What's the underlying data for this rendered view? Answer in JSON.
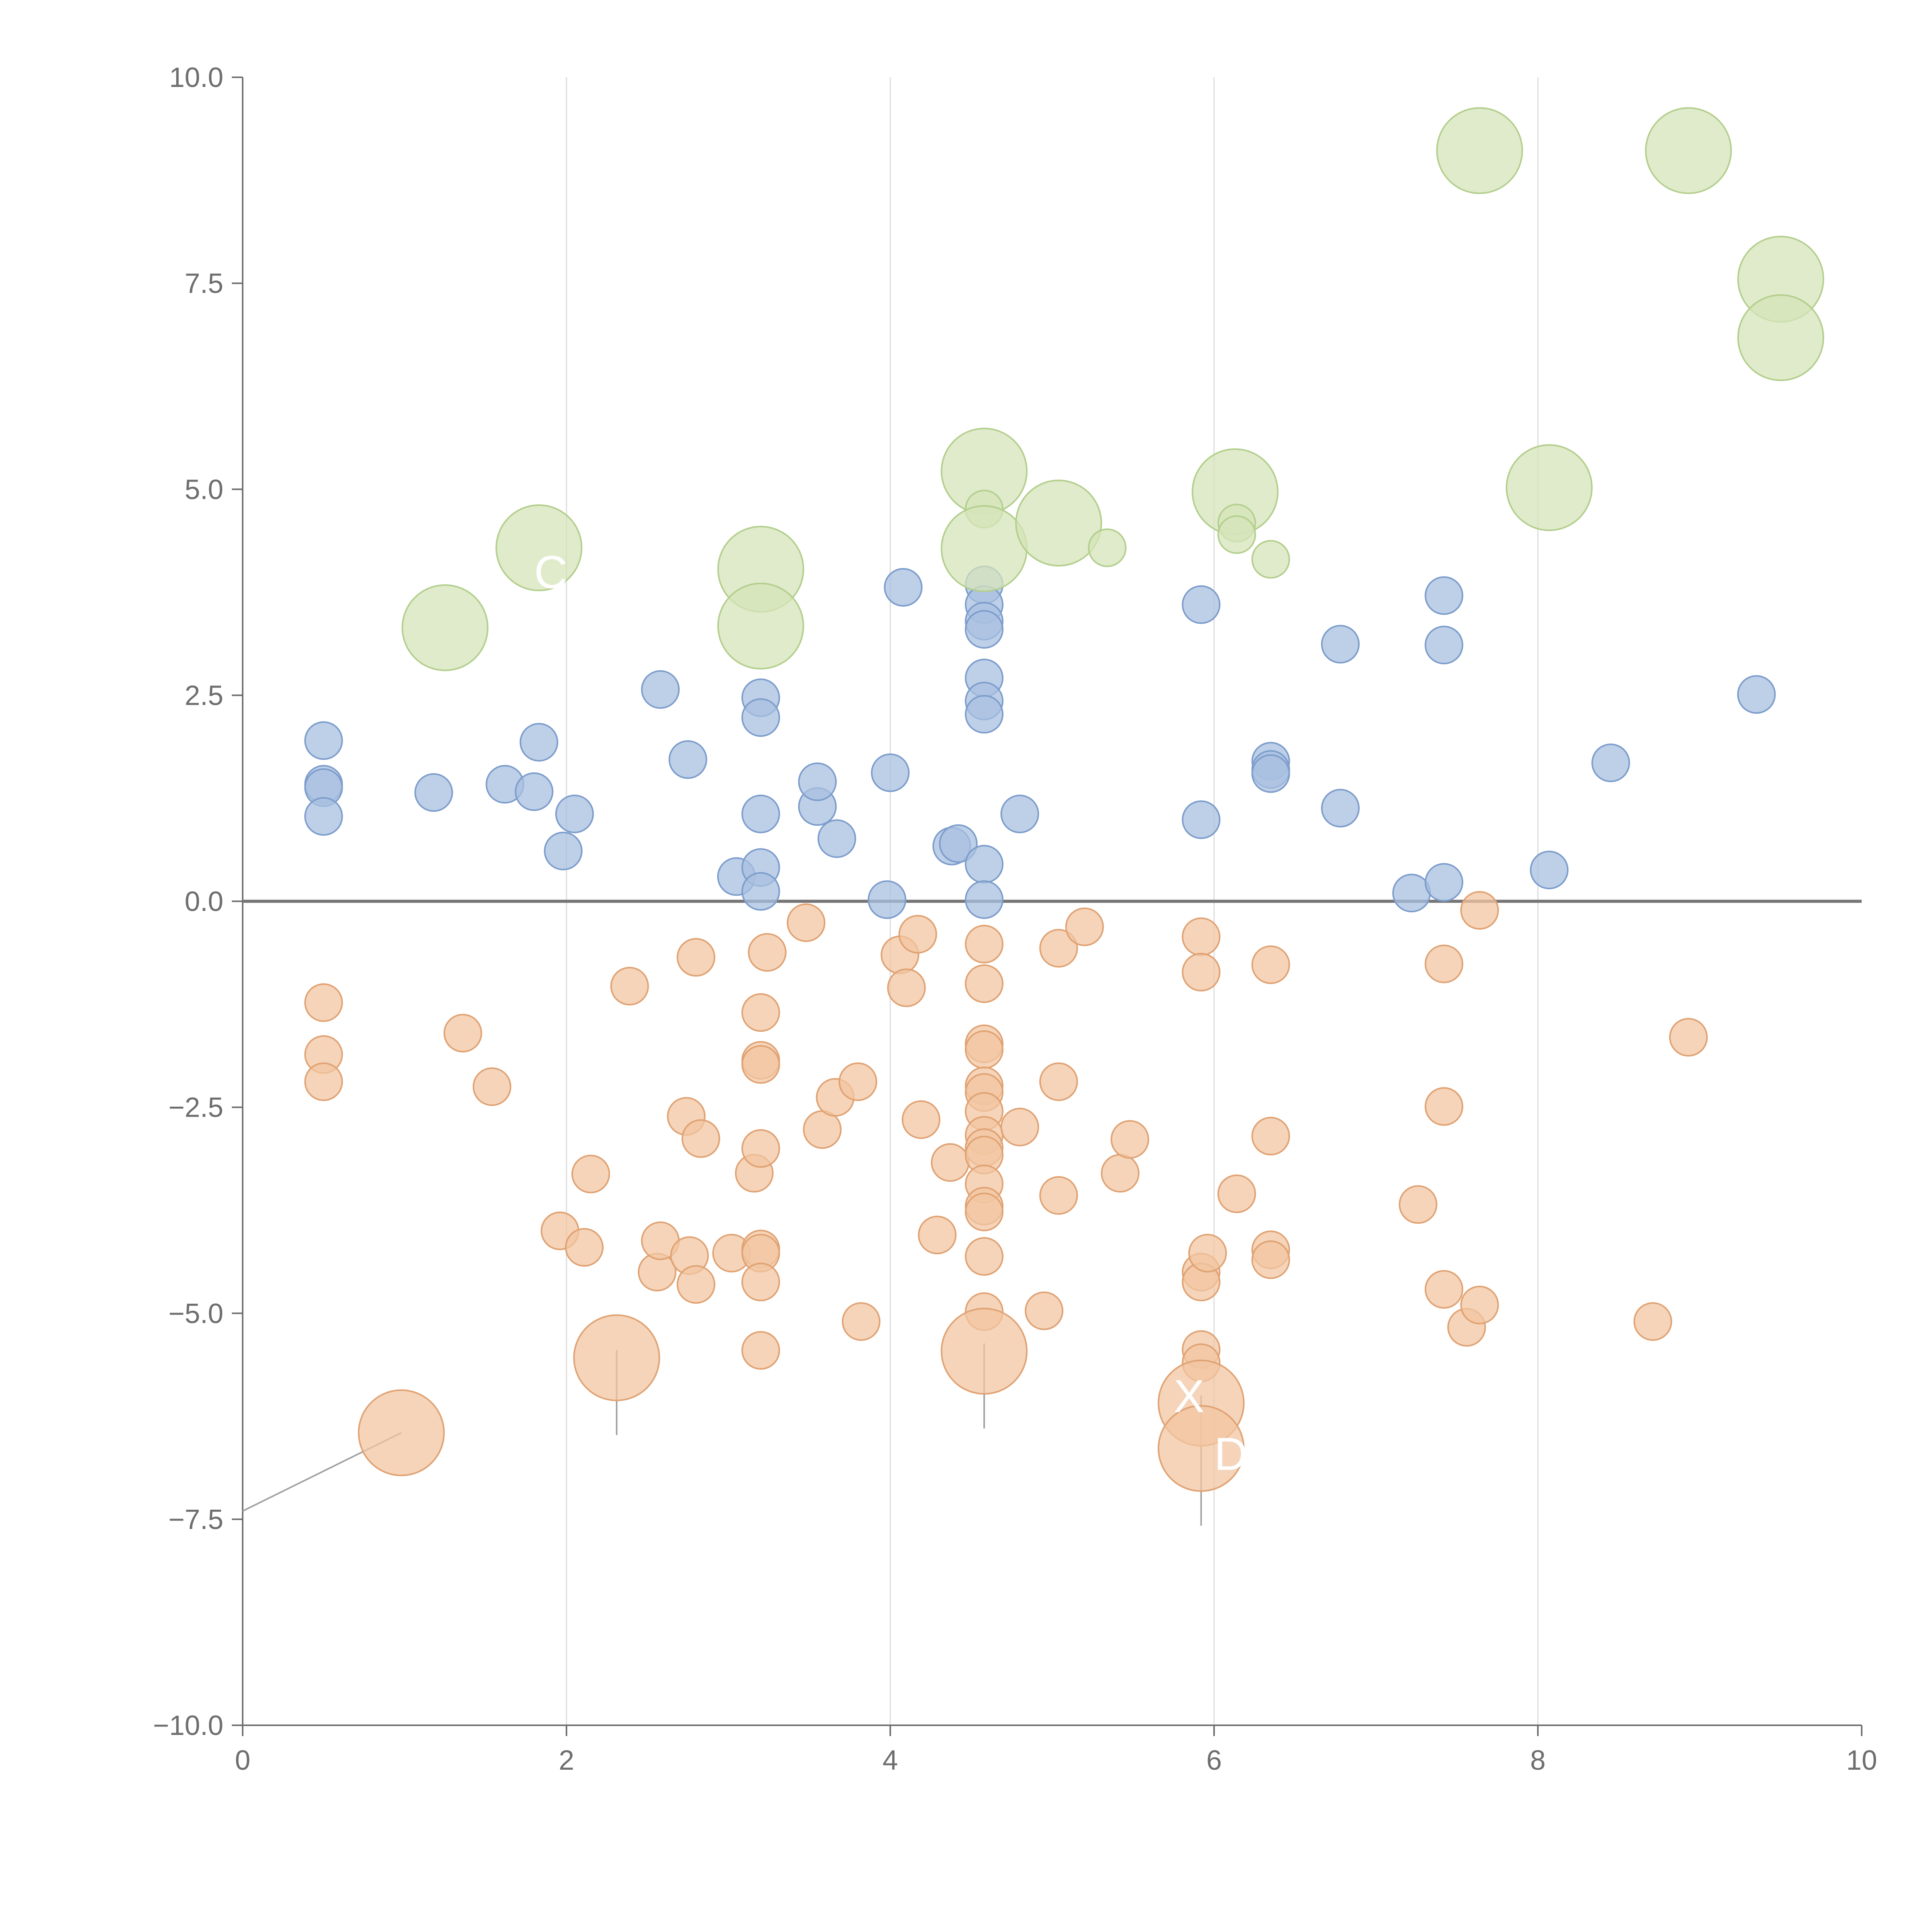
{
  "chart_data": {
    "type": "scatter",
    "title": "",
    "xlabel": "",
    "ylabel": "",
    "xlim": [
      0,
      10
    ],
    "ylim": [
      -10,
      10
    ],
    "grid": "vertical",
    "x_ticks": [
      "0",
      "2",
      "4",
      "6",
      "8",
      "10"
    ],
    "y_ticks": [
      "10.0",
      "7.5",
      "5.0",
      "2.5",
      "0.0",
      "−2.5",
      "−5.0",
      "−7.5",
      "−10.0"
    ],
    "colors": {
      "blue_fill": "#a8c0e0",
      "blue_stroke": "#7d9dcc",
      "orange_fill": "#f2c6a2",
      "orange_stroke": "#e0a273",
      "green_fill": "#d5e4ba",
      "green_stroke": "#b3cf8d"
    },
    "series": [
      {
        "name": "blue",
        "color_fill": "#a8c0e0",
        "color_stroke": "#7d9dcc",
        "points": [
          {
            "x": 0.5,
            "y": 1.95,
            "size": 1
          },
          {
            "x": 0.5,
            "y": 1.42,
            "size": 1
          },
          {
            "x": 0.5,
            "y": 1.38,
            "size": 1
          },
          {
            "x": 0.5,
            "y": 1.03,
            "size": 1
          },
          {
            "x": 1.18,
            "y": 1.32,
            "size": 1
          },
          {
            "x": 1.62,
            "y": 1.42,
            "size": 1
          },
          {
            "x": 1.8,
            "y": 1.33,
            "size": 1
          },
          {
            "x": 1.83,
            "y": 1.93,
            "size": 1
          },
          {
            "x": 1.98,
            "y": 0.61,
            "size": 1
          },
          {
            "x": 2.05,
            "y": 1.06,
            "size": 1
          },
          {
            "x": 2.58,
            "y": 2.57,
            "size": 1
          },
          {
            "x": 2.75,
            "y": 1.72,
            "size": 1
          },
          {
            "x": 3.05,
            "y": 0.3,
            "size": 1
          },
          {
            "x": 3.2,
            "y": 2.47,
            "size": 1
          },
          {
            "x": 3.2,
            "y": 2.23,
            "size": 1
          },
          {
            "x": 3.2,
            "y": 1.06,
            "size": 1
          },
          {
            "x": 3.2,
            "y": 0.41,
            "size": 1
          },
          {
            "x": 3.2,
            "y": 0.12,
            "size": 1
          },
          {
            "x": 3.55,
            "y": 1.15,
            "size": 1
          },
          {
            "x": 3.55,
            "y": 1.45,
            "size": 1
          },
          {
            "x": 3.67,
            "y": 0.76,
            "size": 1
          },
          {
            "x": 3.98,
            "y": 0.02,
            "size": 1
          },
          {
            "x": 4.0,
            "y": 1.56,
            "size": 1
          },
          {
            "x": 4.08,
            "y": 3.81,
            "size": 1
          },
          {
            "x": 4.38,
            "y": 0.67,
            "size": 1
          },
          {
            "x": 4.42,
            "y": 0.7,
            "size": 1
          },
          {
            "x": 4.58,
            "y": 3.84,
            "size": 1
          },
          {
            "x": 4.58,
            "y": 3.6,
            "size": 1
          },
          {
            "x": 4.58,
            "y": 3.4,
            "size": 1
          },
          {
            "x": 4.58,
            "y": 3.3,
            "size": 1
          },
          {
            "x": 4.58,
            "y": 2.71,
            "size": 1
          },
          {
            "x": 4.58,
            "y": 2.43,
            "size": 1
          },
          {
            "x": 4.58,
            "y": 2.27,
            "size": 1
          },
          {
            "x": 4.58,
            "y": 0.45,
            "size": 1
          },
          {
            "x": 4.58,
            "y": 0.02,
            "size": 1
          },
          {
            "x": 4.8,
            "y": 1.06,
            "size": 1
          },
          {
            "x": 5.92,
            "y": 3.6,
            "size": 1
          },
          {
            "x": 5.92,
            "y": 0.99,
            "size": 1
          },
          {
            "x": 6.35,
            "y": 1.7,
            "size": 1
          },
          {
            "x": 6.35,
            "y": 1.6,
            "size": 1
          },
          {
            "x": 6.35,
            "y": 1.55,
            "size": 1
          },
          {
            "x": 6.78,
            "y": 3.12,
            "size": 1
          },
          {
            "x": 6.78,
            "y": 1.13,
            "size": 1
          },
          {
            "x": 7.22,
            "y": 0.1,
            "size": 1
          },
          {
            "x": 7.42,
            "y": 3.71,
            "size": 1
          },
          {
            "x": 7.42,
            "y": 3.11,
            "size": 1
          },
          {
            "x": 7.42,
            "y": 0.23,
            "size": 1
          },
          {
            "x": 8.07,
            "y": 0.38,
            "size": 1
          },
          {
            "x": 8.45,
            "y": 1.68,
            "size": 1
          },
          {
            "x": 9.35,
            "y": 2.51,
            "size": 1
          }
        ]
      },
      {
        "name": "orange",
        "color_fill": "#f2c6a2",
        "color_stroke": "#e0a273",
        "points": [
          {
            "x": 0.5,
            "y": -1.23,
            "size": 1
          },
          {
            "x": 0.5,
            "y": -1.86,
            "size": 1
          },
          {
            "x": 0.5,
            "y": -2.19,
            "size": 1
          },
          {
            "x": 0.98,
            "y": -6.45,
            "size": 2.3
          },
          {
            "x": 1.36,
            "y": -1.6,
            "size": 1
          },
          {
            "x": 1.54,
            "y": -2.25,
            "size": 1
          },
          {
            "x": 1.96,
            "y": -4.0,
            "size": 1
          },
          {
            "x": 2.11,
            "y": -4.2,
            "size": 1
          },
          {
            "x": 2.15,
            "y": -3.31,
            "size": 1
          },
          {
            "x": 2.31,
            "y": -5.54,
            "size": 2.3
          },
          {
            "x": 2.39,
            "y": -1.03,
            "size": 1
          },
          {
            "x": 2.56,
            "y": -4.5,
            "size": 1
          },
          {
            "x": 2.58,
            "y": -4.12,
            "size": 1
          },
          {
            "x": 2.74,
            "y": -2.61,
            "size": 1
          },
          {
            "x": 2.76,
            "y": -4.3,
            "size": 1
          },
          {
            "x": 2.8,
            "y": -0.68,
            "size": 1
          },
          {
            "x": 2.8,
            "y": -4.65,
            "size": 1
          },
          {
            "x": 2.83,
            "y": -2.88,
            "size": 1
          },
          {
            "x": 3.02,
            "y": -4.27,
            "size": 1
          },
          {
            "x": 3.16,
            "y": -3.3,
            "size": 1
          },
          {
            "x": 3.2,
            "y": -1.35,
            "size": 1
          },
          {
            "x": 3.2,
            "y": -1.93,
            "size": 1
          },
          {
            "x": 3.2,
            "y": -1.98,
            "size": 1
          },
          {
            "x": 3.2,
            "y": -3.0,
            "size": 1
          },
          {
            "x": 3.2,
            "y": -4.22,
            "size": 1
          },
          {
            "x": 3.2,
            "y": -4.27,
            "size": 1
          },
          {
            "x": 3.2,
            "y": -4.62,
            "size": 1
          },
          {
            "x": 3.2,
            "y": -5.45,
            "size": 1
          },
          {
            "x": 3.24,
            "y": -0.62,
            "size": 1
          },
          {
            "x": 3.48,
            "y": -0.26,
            "size": 1
          },
          {
            "x": 3.58,
            "y": -2.77,
            "size": 1
          },
          {
            "x": 3.66,
            "y": -2.38,
            "size": 1
          },
          {
            "x": 3.8,
            "y": -2.19,
            "size": 1
          },
          {
            "x": 3.82,
            "y": -5.1,
            "size": 1
          },
          {
            "x": 4.06,
            "y": -0.65,
            "size": 1
          },
          {
            "x": 4.1,
            "y": -1.05,
            "size": 1
          },
          {
            "x": 4.17,
            "y": -0.4,
            "size": 1
          },
          {
            "x": 4.19,
            "y": -2.65,
            "size": 1
          },
          {
            "x": 4.29,
            "y": -4.05,
            "size": 1
          },
          {
            "x": 4.37,
            "y": -3.17,
            "size": 1
          },
          {
            "x": 4.58,
            "y": -0.52,
            "size": 1
          },
          {
            "x": 4.58,
            "y": -1.0,
            "size": 1
          },
          {
            "x": 4.58,
            "y": -1.73,
            "size": 1
          },
          {
            "x": 4.58,
            "y": -1.8,
            "size": 1
          },
          {
            "x": 4.58,
            "y": -2.24,
            "size": 1
          },
          {
            "x": 4.58,
            "y": -2.32,
            "size": 1
          },
          {
            "x": 4.58,
            "y": -2.55,
            "size": 1
          },
          {
            "x": 4.58,
            "y": -2.84,
            "size": 1
          },
          {
            "x": 4.58,
            "y": -2.99,
            "size": 1
          },
          {
            "x": 4.58,
            "y": -3.08,
            "size": 1
          },
          {
            "x": 4.58,
            "y": -3.43,
            "size": 1
          },
          {
            "x": 4.58,
            "y": -3.7,
            "size": 1
          },
          {
            "x": 4.58,
            "y": -3.77,
            "size": 1
          },
          {
            "x": 4.58,
            "y": -4.31,
            "size": 1
          },
          {
            "x": 4.58,
            "y": -4.98,
            "size": 1
          },
          {
            "x": 4.58,
            "y": -5.46,
            "size": 2.3
          },
          {
            "x": 4.8,
            "y": -2.74,
            "size": 1
          },
          {
            "x": 4.95,
            "y": -4.97,
            "size": 1
          },
          {
            "x": 5.04,
            "y": -0.57,
            "size": 1
          },
          {
            "x": 5.04,
            "y": -2.19,
            "size": 1
          },
          {
            "x": 5.04,
            "y": -3.57,
            "size": 1
          },
          {
            "x": 5.2,
            "y": -0.31,
            "size": 1
          },
          {
            "x": 5.42,
            "y": -3.3,
            "size": 1
          },
          {
            "x": 5.48,
            "y": -2.89,
            "size": 1
          },
          {
            "x": 5.92,
            "y": -0.43,
            "size": 1
          },
          {
            "x": 5.92,
            "y": -0.86,
            "size": 1
          },
          {
            "x": 5.92,
            "y": -4.5,
            "size": 1
          },
          {
            "x": 5.92,
            "y": -4.62,
            "size": 1
          },
          {
            "x": 5.92,
            "y": -5.44,
            "size": 1
          },
          {
            "x": 5.92,
            "y": -5.6,
            "size": 1
          },
          {
            "x": 5.92,
            "y": -6.09,
            "size": 2.3
          },
          {
            "x": 5.92,
            "y": -6.64,
            "size": 2.3
          },
          {
            "x": 5.96,
            "y": -4.27,
            "size": 1
          },
          {
            "x": 6.14,
            "y": -3.55,
            "size": 1
          },
          {
            "x": 6.35,
            "y": -0.77,
            "size": 1
          },
          {
            "x": 6.35,
            "y": -2.85,
            "size": 1
          },
          {
            "x": 6.35,
            "y": -4.23,
            "size": 1
          },
          {
            "x": 6.35,
            "y": -4.35,
            "size": 1
          },
          {
            "x": 7.26,
            "y": -3.68,
            "size": 1
          },
          {
            "x": 7.42,
            "y": -0.76,
            "size": 1
          },
          {
            "x": 7.42,
            "y": -2.49,
            "size": 1
          },
          {
            "x": 7.42,
            "y": -4.71,
            "size": 1
          },
          {
            "x": 7.56,
            "y": -5.17,
            "size": 1
          },
          {
            "x": 7.64,
            "y": -0.11,
            "size": 1
          },
          {
            "x": 7.64,
            "y": -4.9,
            "size": 1
          },
          {
            "x": 8.71,
            "y": -5.1,
            "size": 1
          },
          {
            "x": 8.93,
            "y": -1.65,
            "size": 1
          }
        ]
      },
      {
        "name": "green",
        "color_fill": "#d5e4ba",
        "color_stroke": "#b3cf8d",
        "points": [
          {
            "x": 1.25,
            "y": 3.32,
            "size": 2.3
          },
          {
            "x": 1.83,
            "y": 4.29,
            "size": 2.3
          },
          {
            "x": 3.2,
            "y": 4.03,
            "size": 2.3
          },
          {
            "x": 3.2,
            "y": 3.34,
            "size": 2.3
          },
          {
            "x": 4.58,
            "y": 5.22,
            "size": 2.3
          },
          {
            "x": 4.58,
            "y": 4.76,
            "size": 1
          },
          {
            "x": 4.58,
            "y": 4.28,
            "size": 2.3
          },
          {
            "x": 5.04,
            "y": 4.59,
            "size": 2.3
          },
          {
            "x": 5.34,
            "y": 4.29,
            "size": 1
          },
          {
            "x": 6.13,
            "y": 4.97,
            "size": 2.3
          },
          {
            "x": 6.14,
            "y": 4.59,
            "size": 1
          },
          {
            "x": 6.14,
            "y": 4.45,
            "size": 1
          },
          {
            "x": 6.35,
            "y": 4.15,
            "size": 1
          },
          {
            "x": 7.64,
            "y": 9.11,
            "size": 2.3
          },
          {
            "x": 8.07,
            "y": 5.02,
            "size": 2.3
          },
          {
            "x": 8.93,
            "y": 9.11,
            "size": 2.3
          },
          {
            "x": 9.5,
            "y": 7.55,
            "size": 2.3
          },
          {
            "x": 9.5,
            "y": 6.84,
            "size": 2.3
          }
        ]
      }
    ],
    "annotations": [
      {
        "text": "C",
        "x": 1.8,
        "y": 3.8
      },
      {
        "text": "X",
        "x": 5.75,
        "y": -6.2
      },
      {
        "text": "D",
        "x": 6.0,
        "y": -6.9
      }
    ]
  }
}
